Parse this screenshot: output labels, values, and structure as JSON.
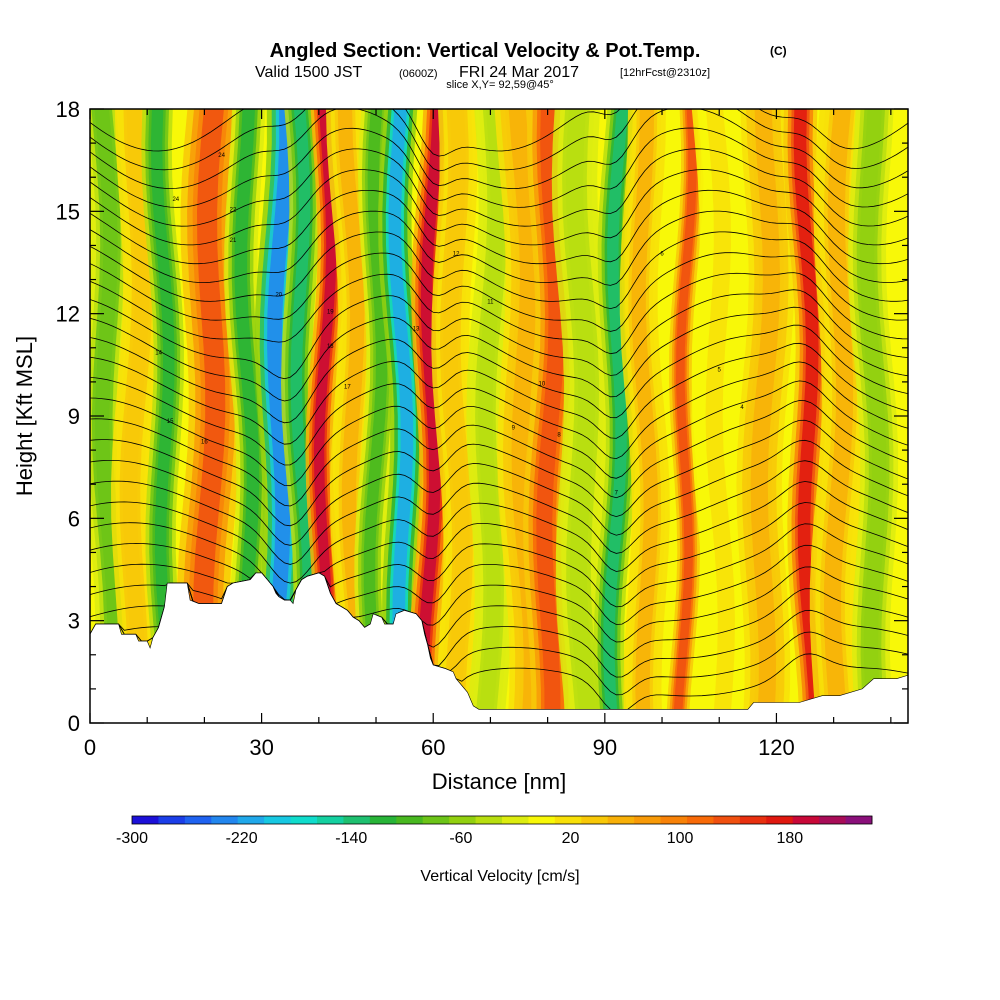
{
  "chart_data": {
    "type": "heatmap",
    "title": "Angled Section: Vertical Velocity & Pot.Temp.",
    "title_unit": "(C)",
    "subtitle": {
      "valid": "Valid 1500 JST",
      "utc": "(0600Z)",
      "date": "FRI 24 Mar 2017",
      "fcst": "[12hrFcst@2310z]"
    },
    "slice": "slice X,Y= 92,59@45°",
    "xlabel": "Distance [nm]",
    "ylabel": "Height [Kft MSL]",
    "xlim": [
      0,
      143
    ],
    "ylim": [
      0,
      18
    ],
    "x_ticks": [
      0,
      30,
      60,
      90,
      120
    ],
    "y_ticks": [
      0,
      3,
      6,
      9,
      12,
      15,
      18
    ],
    "colorbar": {
      "label": "Vertical Velocity [cm/s]",
      "min": -300,
      "max": 220,
      "step": 20,
      "tick_values": [
        -300,
        -220,
        -140,
        -60,
        20,
        100,
        180
      ],
      "palette": [
        "#1c10d8",
        "#1b3ee8",
        "#1f62f0",
        "#2286ee",
        "#20a8ea",
        "#17c8e2",
        "#10dccc",
        "#14d0a0",
        "#1ec070",
        "#28b438",
        "#48b820",
        "#6cc418",
        "#92d010",
        "#b8de10",
        "#dcec10",
        "#f8f808",
        "#f8e008",
        "#f8c808",
        "#f8b008",
        "#f89a08",
        "#f88208",
        "#f86a08",
        "#f05010",
        "#e83010",
        "#e01810",
        "#c80838",
        "#a80c58",
        "#8a107a"
      ]
    },
    "vertical_velocity_bands": [
      {
        "x": 3,
        "w": 2.5,
        "v": -80
      },
      {
        "x": 8,
        "w": 2.5,
        "v": 50
      },
      {
        "x": 13,
        "w": 2,
        "v": -120
      },
      {
        "x": 21,
        "w": 3.5,
        "v": 140
      },
      {
        "x": 27.5,
        "w": 2.2,
        "v": -110
      },
      {
        "x": 33,
        "w": 2.6,
        "v": -230
      },
      {
        "x": 37,
        "w": 2.0,
        "v": -140
      },
      {
        "x": 41,
        "w": 1.8,
        "v": 210
      },
      {
        "x": 46,
        "w": 2.5,
        "v": 60
      },
      {
        "x": 50,
        "w": 2.0,
        "v": -90
      },
      {
        "x": 54.5,
        "w": 2.2,
        "v": -220
      },
      {
        "x": 59.5,
        "w": 2.0,
        "v": 210
      },
      {
        "x": 64,
        "w": 2.5,
        "v": 50
      },
      {
        "x": 70,
        "w": 2.5,
        "v": -40
      },
      {
        "x": 76,
        "w": 3.0,
        "v": 70
      },
      {
        "x": 80.5,
        "w": 2.8,
        "v": 150
      },
      {
        "x": 86,
        "w": 3.0,
        "v": -40
      },
      {
        "x": 92,
        "w": 2.0,
        "v": -130
      },
      {
        "x": 97,
        "w": 2.5,
        "v": 60
      },
      {
        "x": 104,
        "w": 1.5,
        "v": 150
      },
      {
        "x": 110,
        "w": 3.0,
        "v": 20
      },
      {
        "x": 118,
        "w": 3.0,
        "v": 70
      },
      {
        "x": 125.5,
        "w": 2.2,
        "v": 190
      },
      {
        "x": 131,
        "w": 3.0,
        "v": 60
      },
      {
        "x": 137,
        "w": 2.5,
        "v": -60
      }
    ],
    "terrain": [
      [
        0,
        2.6
      ],
      [
        1,
        2.9
      ],
      [
        5,
        2.9
      ],
      [
        5.5,
        2.6
      ],
      [
        8,
        2.6
      ],
      [
        8.5,
        2.4
      ],
      [
        10,
        2.4
      ],
      [
        10.5,
        2.2
      ],
      [
        11,
        2.5
      ],
      [
        12,
        2.8
      ],
      [
        13,
        3.4
      ],
      [
        13.5,
        4.1
      ],
      [
        17,
        4.1
      ],
      [
        17.5,
        3.6
      ],
      [
        19,
        3.5
      ],
      [
        23,
        3.5
      ],
      [
        24,
        4.0
      ],
      [
        25,
        4.1
      ],
      [
        28,
        4.2
      ],
      [
        29,
        4.4
      ],
      [
        30,
        4.4
      ],
      [
        31,
        4.2
      ],
      [
        32,
        4.0
      ],
      [
        32.5,
        3.8
      ],
      [
        33,
        3.7
      ],
      [
        34,
        3.6
      ],
      [
        35,
        3.6
      ],
      [
        35.5,
        3.5
      ],
      [
        36,
        3.9
      ],
      [
        37,
        4.2
      ],
      [
        38,
        4.3
      ],
      [
        40,
        4.4
      ],
      [
        41,
        4.3
      ],
      [
        42,
        3.8
      ],
      [
        43,
        3.5
      ],
      [
        44,
        3.4
      ],
      [
        45,
        3.3
      ],
      [
        46,
        3.1
      ],
      [
        47,
        3.0
      ],
      [
        48,
        2.8
      ],
      [
        49,
        2.9
      ],
      [
        49.5,
        3.2
      ],
      [
        51,
        3.1
      ],
      [
        51.5,
        2.9
      ],
      [
        53,
        2.9
      ],
      [
        53.5,
        3.2
      ],
      [
        55,
        3.3
      ],
      [
        57,
        3.2
      ],
      [
        58,
        3.0
      ],
      [
        58.5,
        2.6
      ],
      [
        59,
        2.3
      ],
      [
        59.5,
        1.9
      ],
      [
        60,
        1.7
      ],
      [
        62,
        1.6
      ],
      [
        63.5,
        1.5
      ],
      [
        64,
        1.3
      ],
      [
        65,
        1.1
      ],
      [
        66,
        0.9
      ],
      [
        66.5,
        0.7
      ],
      [
        67,
        0.5
      ],
      [
        68,
        0.4
      ],
      [
        80,
        0.4
      ],
      [
        90,
        0.4
      ],
      [
        100,
        0.4
      ],
      [
        115,
        0.4
      ],
      [
        116,
        0.6
      ],
      [
        120,
        0.6
      ],
      [
        121,
        0.6
      ],
      [
        124,
        0.6
      ],
      [
        128,
        0.8
      ],
      [
        131,
        0.8
      ],
      [
        135,
        1.0
      ],
      [
        137,
        1.3
      ],
      [
        141,
        1.3
      ],
      [
        143,
        1.4
      ]
    ],
    "theta_label_values": [
      "24",
      "24",
      "22",
      "21",
      "20",
      "19",
      "18",
      "17",
      "16",
      "15",
      "14",
      "13",
      "12",
      "11",
      "10",
      "9",
      "8",
      "7",
      "6",
      "5",
      "4"
    ]
  }
}
